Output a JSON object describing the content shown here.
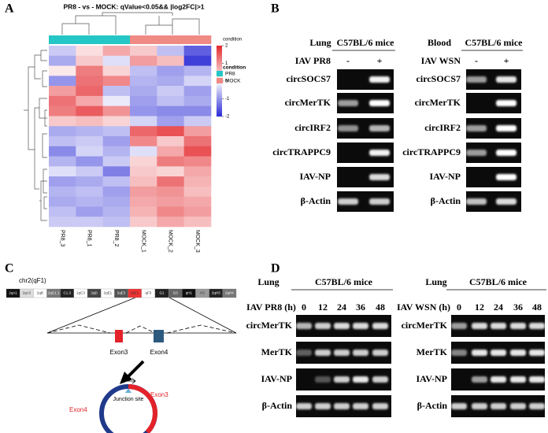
{
  "panel_labels": [
    "A",
    "B",
    "C",
    "D"
  ],
  "panel_a": {
    "title": "PR8 - vs - MOCK: qValue<0.05&& |log2FC|>1",
    "heatmap": {
      "columns": [
        "PR8_3",
        "PR8_1",
        "PR8_2",
        "MOCK_1",
        "MOCK_2",
        "MOCK_3"
      ],
      "column_condition": [
        0,
        0,
        0,
        1,
        1,
        1
      ],
      "values": [
        [
          -0.5,
          0.3,
          0.8,
          0.5,
          -0.6,
          -1.5
        ],
        [
          -0.8,
          0.5,
          -0.3,
          0.9,
          0.6,
          -1.8
        ],
        [
          0.2,
          1.2,
          0.4,
          -0.6,
          -0.9,
          -0.7
        ],
        [
          -1.0,
          1.3,
          1.1,
          -0.7,
          -0.8,
          -0.4
        ],
        [
          0.9,
          1.4,
          -0.6,
          -0.8,
          -0.5,
          -0.9
        ],
        [
          1.3,
          0.8,
          -0.2,
          -0.9,
          -0.6,
          -0.8
        ],
        [
          1.2,
          1.5,
          1.0,
          -1.0,
          -1.1,
          -1.1
        ],
        [
          0.5,
          0.6,
          0.4,
          -0.4,
          -0.9,
          -0.5
        ],
        [
          -0.8,
          -0.7,
          -0.6,
          1.4,
          1.6,
          0.9
        ],
        [
          -0.6,
          -0.5,
          -0.9,
          1.1,
          0.5,
          1.3
        ],
        [
          -1.1,
          -0.4,
          -0.7,
          -0.3,
          0.8,
          1.6
        ],
        [
          -0.7,
          -1.0,
          -0.5,
          0.4,
          1.2,
          1.1
        ],
        [
          -0.3,
          -0.5,
          -1.2,
          0.5,
          0.4,
          0.8
        ],
        [
          -0.9,
          -0.8,
          -0.6,
          0.6,
          1.3,
          0.7
        ],
        [
          -0.7,
          -0.6,
          -0.9,
          0.9,
          1.0,
          0.6
        ],
        [
          -0.8,
          -0.7,
          -0.8,
          0.8,
          0.9,
          0.8
        ],
        [
          -0.6,
          -0.9,
          -0.7,
          0.7,
          1.1,
          0.9
        ],
        [
          -0.5,
          -0.5,
          -0.6,
          0.5,
          0.8,
          0.6
        ]
      ],
      "color_low": "#2a2ad6",
      "color_mid": "#ffffff",
      "color_high": "#e3262a",
      "colorbar_title": "condition",
      "colorbar_lim": [
        -2,
        2
      ],
      "colorbar_ticks": [
        2,
        1,
        0,
        -1,
        -2
      ]
    },
    "legend": {
      "title": "condition",
      "items": [
        {
          "name": "PR8",
          "color": "#25c6c6"
        },
        {
          "name": "MOCK",
          "color": "#ef8a84"
        }
      ]
    }
  },
  "panel_b": {
    "gels": [
      {
        "tissue": "Lung",
        "strain": "C57BL/6 mice",
        "treatment": "IAV PR8",
        "lanes": [
          "-",
          "+"
        ],
        "rows": [
          "circSOCS7",
          "circMerTK",
          "circIRF2",
          "circTRAPPC9",
          "IAV-NP",
          "β-Actin"
        ]
      },
      {
        "tissue": "Blood",
        "strain": "C57BL/6 mice",
        "treatment": "IAV WSN",
        "lanes": [
          "-",
          "+"
        ],
        "rows": [
          "circSOCS7",
          "circMerTK",
          "circIRF2",
          "circTRAPPC9",
          "IAV-NP",
          "β-Actin"
        ]
      }
    ]
  },
  "panel_c": {
    "chromosome": "chr2(qF1)",
    "bands": [
      "2qA1",
      "2qA3",
      "2qB",
      "2qC1.1",
      "C1.3",
      "2qC3",
      "2qD",
      "2qE1",
      "2qE3",
      "2qF1",
      "qF3",
      "G1",
      "G3",
      "qH1",
      "H2",
      "2qH3",
      "2qH4"
    ],
    "exons": [
      "Exon3",
      "Exon4"
    ],
    "junction": "Junction site",
    "circle_labels": [
      "Exon3",
      "Exon4"
    ]
  },
  "panel_d": {
    "gels": [
      {
        "tissue": "Lung",
        "strain": "C57BL/6 mice",
        "treatment": "IAV PR8 (h)",
        "lanes": [
          "0",
          "12",
          "24",
          "36",
          "48"
        ],
        "rows": [
          "circMerTK",
          "MerTK",
          "IAV-NP",
          "β-Actin"
        ]
      },
      {
        "tissue": "Lung",
        "strain": "C57BL/6 mice",
        "treatment": "IAV WSN (h)",
        "lanes": [
          "0",
          "12",
          "24",
          "36",
          "48"
        ],
        "rows": [
          "circMerTK",
          "MerTK",
          "IAV-NP",
          "β-Actin"
        ]
      }
    ]
  }
}
